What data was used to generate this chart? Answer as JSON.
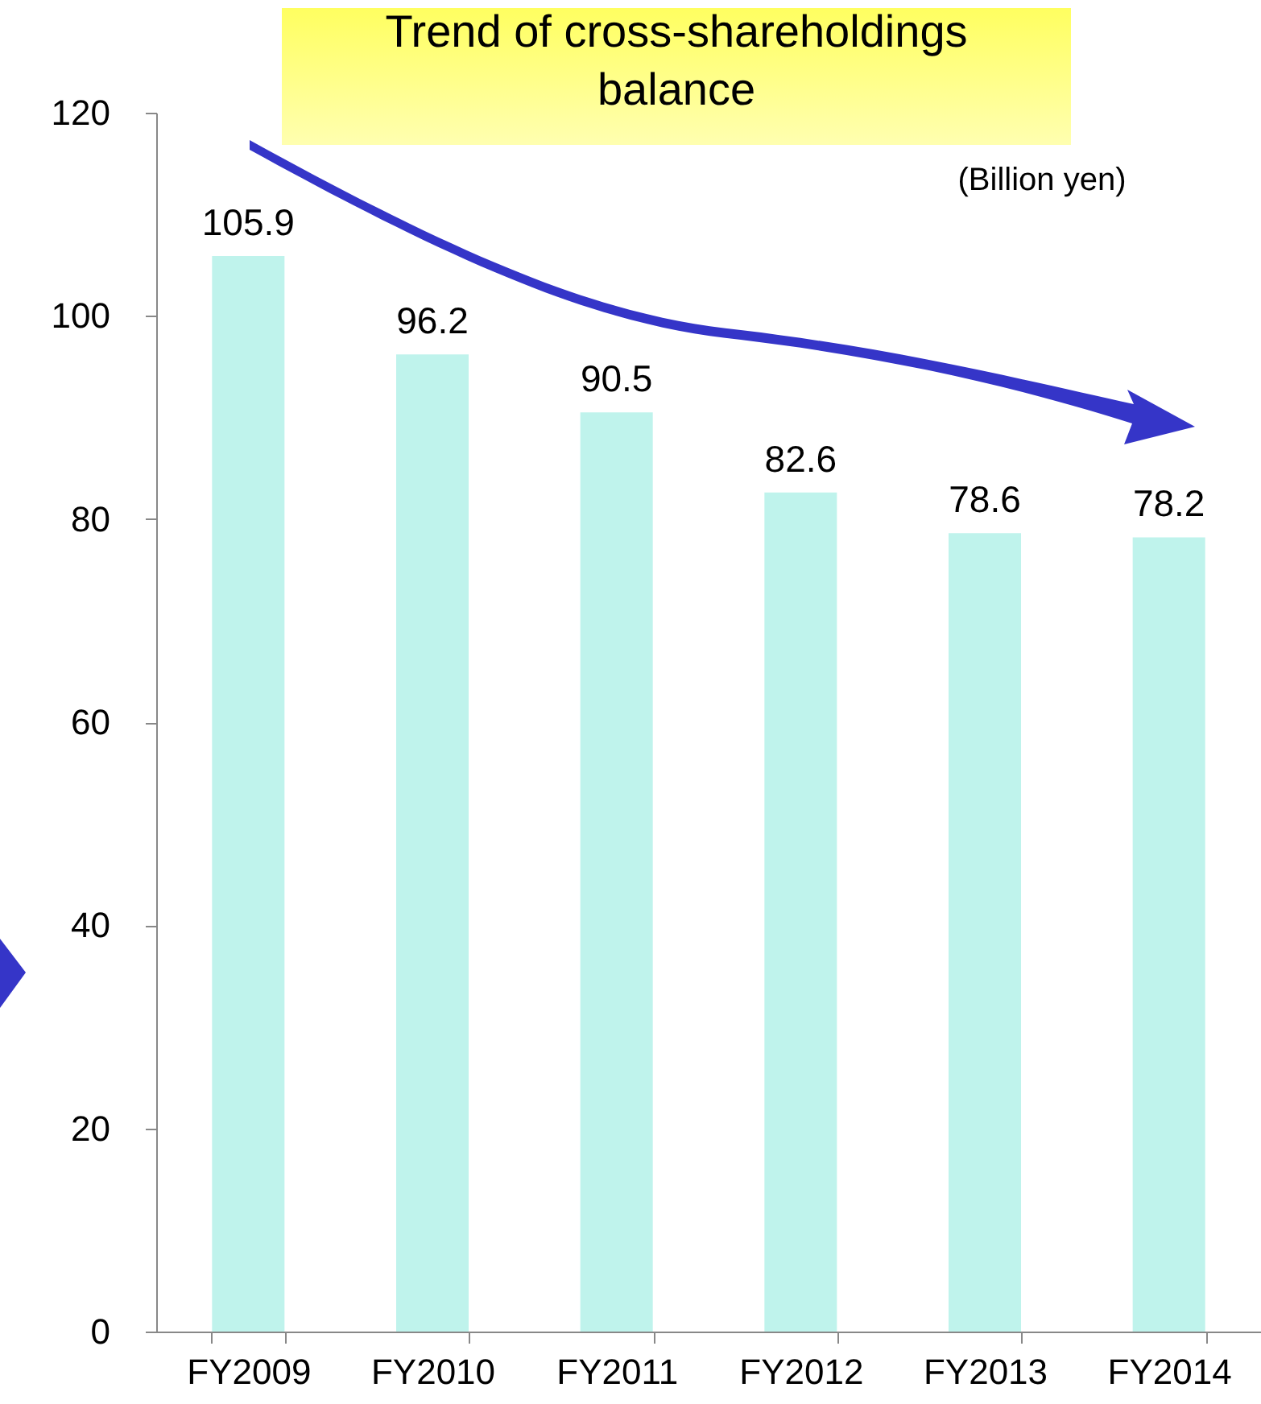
{
  "chart_data": {
    "type": "bar",
    "title": [
      "Trend of cross-shareholdings",
      "balance"
    ],
    "annotations": [
      "(Billion yen)"
    ],
    "categories": [
      "FY2009",
      "FY2010",
      "FY2011",
      "FY2012",
      "FY2013",
      "FY2014"
    ],
    "values": [
      105.9,
      96.2,
      90.5,
      82.6,
      78.6,
      78.2
    ],
    "color": "#bff3ec",
    "ylim": [
      0,
      120
    ],
    "yticks": [
      0,
      20,
      40,
      60,
      80,
      100,
      120
    ],
    "grid": false,
    "data_labels": true
  }
}
